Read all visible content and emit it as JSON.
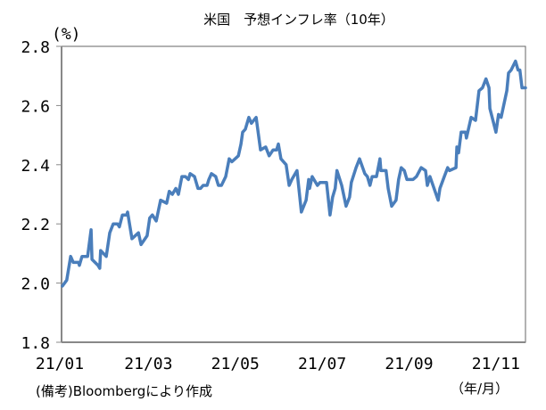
{
  "chart_data": {
    "type": "line",
    "title": "米国　予想インフレ率（10年）",
    "ylabel": "(%)",
    "xlabel": "（年/月）",
    "note": "(備考)Bloombergにより作成",
    "ylim": [
      1.8,
      2.8
    ],
    "yticks": [
      "1.8",
      "2.0",
      "2.2",
      "2.4",
      "2.6",
      "2.8"
    ],
    "xlim": [
      0,
      10.68
    ],
    "xticks": [
      {
        "value": 0,
        "label": "21/01"
      },
      {
        "value": 2,
        "label": "21/03"
      },
      {
        "value": 4,
        "label": "21/05"
      },
      {
        "value": 6,
        "label": "21/07"
      },
      {
        "value": 8,
        "label": "21/09"
      },
      {
        "value": 10,
        "label": "21/11"
      }
    ],
    "grid": false,
    "color": "#4a7ebb",
    "series": [
      {
        "name": "予想インフレ率（10年）",
        "x": [
          0.02,
          0.12,
          0.21,
          0.27,
          0.39,
          0.41,
          0.47,
          0.6,
          0.68,
          0.7,
          0.84,
          0.88,
          0.9,
          1.03,
          1.11,
          1.19,
          1.29,
          1.33,
          1.4,
          1.5,
          1.52,
          1.62,
          1.77,
          1.83,
          1.97,
          2.03,
          2.09,
          2.18,
          2.28,
          2.42,
          2.48,
          2.55,
          2.63,
          2.69,
          2.77,
          2.85,
          2.92,
          2.96,
          3.06,
          3.14,
          3.2,
          3.26,
          3.35,
          3.39,
          3.45,
          3.55,
          3.61,
          3.68,
          3.78,
          3.86,
          3.92,
          4.07,
          4.13,
          4.17,
          4.23,
          4.31,
          4.37,
          4.48,
          4.58,
          4.7,
          4.78,
          4.87,
          4.95,
          4.99,
          5.05,
          5.17,
          5.24,
          5.3,
          5.42,
          5.52,
          5.63,
          5.69,
          5.71,
          5.77,
          5.89,
          5.95,
          6.1,
          6.18,
          6.24,
          6.3,
          6.34,
          6.45,
          6.55,
          6.63,
          6.67,
          6.78,
          6.86,
          6.98,
          7.04,
          7.1,
          7.15,
          7.25,
          7.33,
          7.35,
          7.47,
          7.52,
          7.6,
          7.7,
          7.76,
          7.82,
          7.89,
          7.95,
          8.09,
          8.17,
          8.28,
          8.38,
          8.42,
          8.48,
          8.67,
          8.71,
          8.81,
          8.89,
          8.93,
          9.08,
          9.1,
          9.14,
          9.2,
          9.3,
          9.32,
          9.43,
          9.53,
          9.61,
          9.69,
          9.77,
          9.84,
          9.86,
          10.0,
          10.06,
          10.12,
          10.25,
          10.29,
          10.35,
          10.45,
          10.51,
          10.55,
          10.6,
          10.68
        ],
        "y": [
          1.99,
          2.01,
          2.09,
          2.07,
          2.07,
          2.06,
          2.09,
          2.09,
          2.18,
          2.08,
          2.06,
          2.05,
          2.11,
          2.09,
          2.17,
          2.2,
          2.2,
          2.19,
          2.23,
          2.23,
          2.24,
          2.15,
          2.17,
          2.13,
          2.16,
          2.22,
          2.23,
          2.21,
          2.28,
          2.27,
          2.31,
          2.3,
          2.32,
          2.3,
          2.36,
          2.36,
          2.35,
          2.37,
          2.36,
          2.32,
          2.32,
          2.33,
          2.33,
          2.35,
          2.37,
          2.36,
          2.33,
          2.33,
          2.36,
          2.42,
          2.41,
          2.43,
          2.47,
          2.51,
          2.52,
          2.56,
          2.54,
          2.56,
          2.45,
          2.46,
          2.43,
          2.45,
          2.45,
          2.47,
          2.42,
          2.4,
          2.33,
          2.35,
          2.38,
          2.24,
          2.28,
          2.35,
          2.32,
          2.36,
          2.33,
          2.34,
          2.34,
          2.23,
          2.29,
          2.32,
          2.38,
          2.33,
          2.26,
          2.29,
          2.34,
          2.39,
          2.42,
          2.37,
          2.36,
          2.33,
          2.36,
          2.36,
          2.42,
          2.38,
          2.38,
          2.32,
          2.26,
          2.28,
          2.35,
          2.39,
          2.38,
          2.35,
          2.35,
          2.36,
          2.39,
          2.38,
          2.33,
          2.36,
          2.28,
          2.32,
          2.36,
          2.39,
          2.38,
          2.39,
          2.46,
          2.44,
          2.51,
          2.51,
          2.49,
          2.56,
          2.55,
          2.65,
          2.66,
          2.69,
          2.66,
          2.59,
          2.51,
          2.57,
          2.56,
          2.65,
          2.71,
          2.72,
          2.75,
          2.72,
          2.72,
          2.66,
          2.66
        ]
      }
    ]
  }
}
